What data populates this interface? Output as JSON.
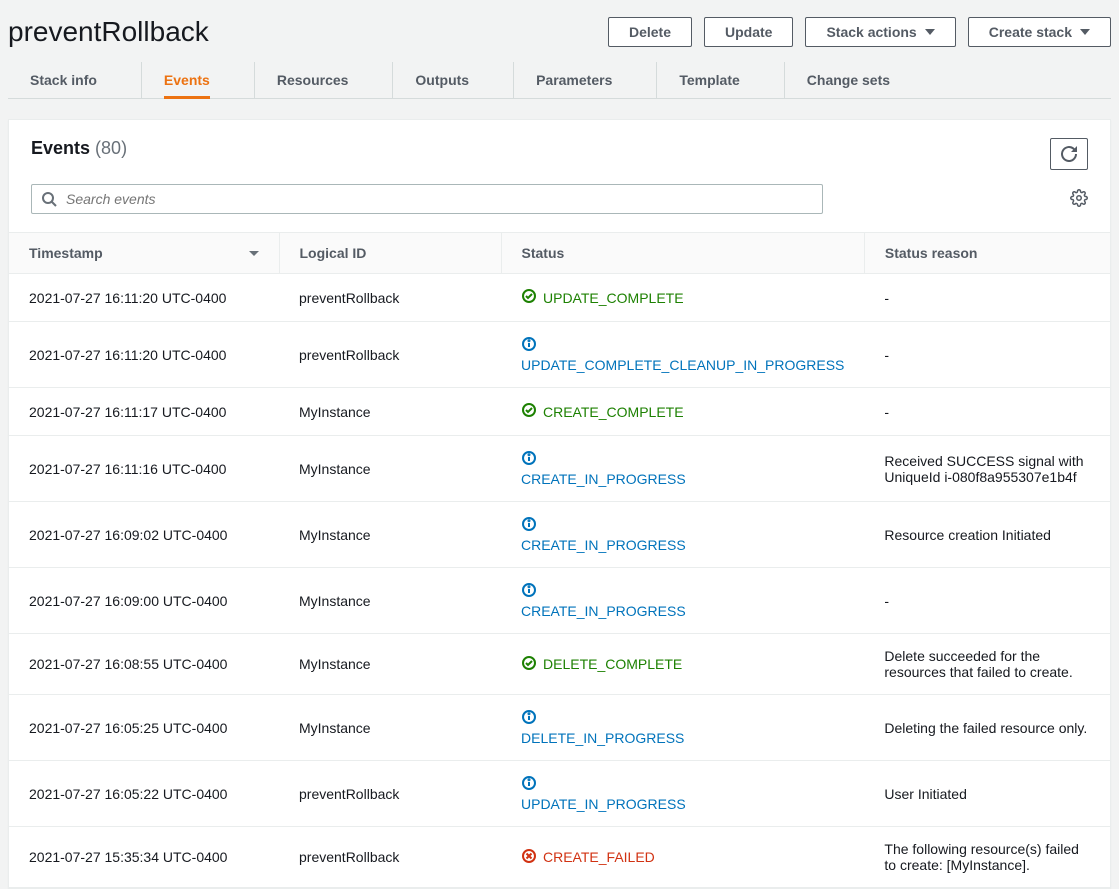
{
  "page_title": "preventRollback",
  "header": {
    "delete": "Delete",
    "update": "Update",
    "stack_actions": "Stack actions",
    "create_stack": "Create stack"
  },
  "tabs": [
    {
      "key": "stack_info",
      "label": "Stack info"
    },
    {
      "key": "events",
      "label": "Events"
    },
    {
      "key": "resources",
      "label": "Resources"
    },
    {
      "key": "outputs",
      "label": "Outputs"
    },
    {
      "key": "parameters",
      "label": "Parameters"
    },
    {
      "key": "template",
      "label": "Template"
    },
    {
      "key": "change_sets",
      "label": "Change sets"
    }
  ],
  "active_tab": "events",
  "events_panel": {
    "title": "Events",
    "count": "(80)",
    "search_placeholder": "Search events",
    "columns": {
      "timestamp": "Timestamp",
      "logical_id": "Logical ID",
      "status": "Status",
      "status_reason": "Status reason"
    },
    "rows": [
      {
        "ts": "2021-07-27 16:11:20 UTC-0400",
        "lid": "preventRollback",
        "status_code": "UPDATE_COMPLETE",
        "status_kind": "success",
        "reason": "-"
      },
      {
        "ts": "2021-07-27 16:11:20 UTC-0400",
        "lid": "preventRollback",
        "status_code": "UPDATE_COMPLETE_CLEANUP_IN_PROGRESS",
        "status_kind": "info",
        "reason": "-"
      },
      {
        "ts": "2021-07-27 16:11:17 UTC-0400",
        "lid": "MyInstance",
        "status_code": "CREATE_COMPLETE",
        "status_kind": "success",
        "reason": "-"
      },
      {
        "ts": "2021-07-27 16:11:16 UTC-0400",
        "lid": "MyInstance",
        "status_code": "CREATE_IN_PROGRESS",
        "status_kind": "info",
        "reason": "Received SUCCESS signal with UniqueId i-080f8a955307e1b4f"
      },
      {
        "ts": "2021-07-27 16:09:02 UTC-0400",
        "lid": "MyInstance",
        "status_code": "CREATE_IN_PROGRESS",
        "status_kind": "info",
        "reason": "Resource creation Initiated"
      },
      {
        "ts": "2021-07-27 16:09:00 UTC-0400",
        "lid": "MyInstance",
        "status_code": "CREATE_IN_PROGRESS",
        "status_kind": "info",
        "reason": "-"
      },
      {
        "ts": "2021-07-27 16:08:55 UTC-0400",
        "lid": "MyInstance",
        "status_code": "DELETE_COMPLETE",
        "status_kind": "success",
        "reason": "Delete succeeded for the resources that failed to create."
      },
      {
        "ts": "2021-07-27 16:05:25 UTC-0400",
        "lid": "MyInstance",
        "status_code": "DELETE_IN_PROGRESS",
        "status_kind": "info",
        "reason": "Deleting the failed resource only."
      },
      {
        "ts": "2021-07-27 16:05:22 UTC-0400",
        "lid": "preventRollback",
        "status_code": "UPDATE_IN_PROGRESS",
        "status_kind": "info",
        "reason": "User Initiated"
      },
      {
        "ts": "2021-07-27 15:35:34 UTC-0400",
        "lid": "preventRollback",
        "status_code": "CREATE_FAILED",
        "status_kind": "failed",
        "reason": "The following resource(s) failed to create: [MyInstance]."
      }
    ]
  },
  "colors": {
    "accent": "#ec7211",
    "link": "#0073bb",
    "success": "#1d8102",
    "failed": "#d13212",
    "bg": "#f2f3f3",
    "panel_bg": "#ffffff",
    "border": "#eaeded",
    "text": "#16191f",
    "muted": "#545b64"
  }
}
